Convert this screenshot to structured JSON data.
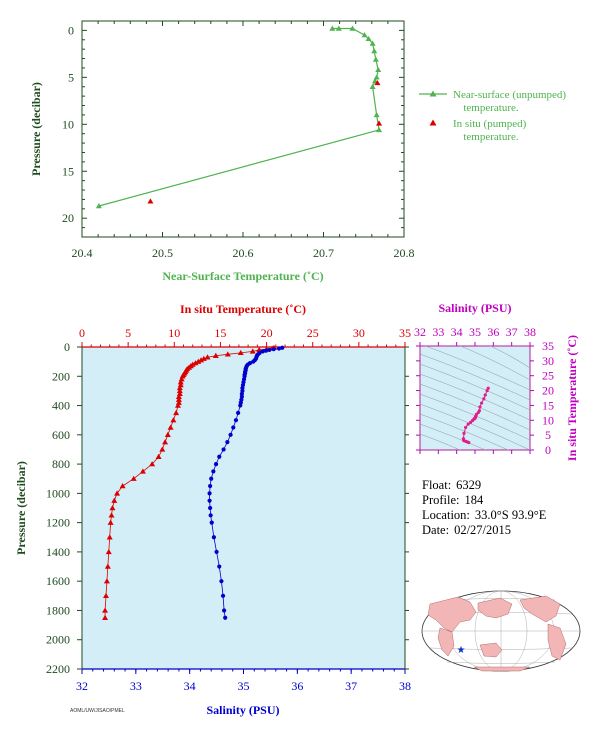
{
  "colors": {
    "near_surface": "#4fb34f",
    "in_situ_temp": "#dd0000",
    "salinity": "#0000cc",
    "ts_plot": "#e0208a",
    "axis_dark": "#1f4a1f",
    "plot_bg": "#d4eef8",
    "land": "#f2b6b6",
    "ocean": "#ffffff"
  },
  "float_info": {
    "float_label": "Float:",
    "float_value": "6329",
    "profile_label": "Profile:",
    "profile_value": "184",
    "location_label": "Location:",
    "location_value": "33.0°S  93.9°E",
    "date_label": "Date:",
    "date_value": "02/27/2015"
  },
  "footer_tag": "AOML/UW/JISAO/PMEL",
  "chart_data": [
    {
      "id": "near_surface",
      "type": "line",
      "xlabel": "Near-Surface Temperature (˚C)",
      "ylabel": "Pressure (decibar)",
      "xlim": [
        20.4,
        20.8
      ],
      "ylim": [
        22,
        -1
      ],
      "x_ticks": [
        "20.4",
        "20.5",
        "20.6",
        "20.7",
        "20.8"
      ],
      "y_ticks": [
        "0",
        "5",
        "10",
        "15",
        "20"
      ],
      "legend": [
        "Near-surface (unpumped) temperature.",
        "In situ (pumped) temperature."
      ],
      "series": [
        {
          "name": "Near-surface (unpumped) temperature.",
          "x": [
            20.711,
            20.719,
            20.736,
            20.751,
            20.756,
            20.761,
            20.763,
            20.765,
            20.768,
            20.766,
            20.764,
            20.761,
            20.766,
            20.769,
            20.421
          ],
          "y": [
            -0.2,
            -0.2,
            -0.2,
            0.5,
            0.9,
            1.4,
            2.2,
            3.1,
            4.2,
            5.0,
            5.4,
            6.0,
            9.0,
            10.6,
            18.7
          ]
        },
        {
          "name": "In situ (pumped) temperature.",
          "x": [
            20.767,
            20.769,
            20.485
          ],
          "y": [
            5.6,
            9.9,
            18.2
          ]
        }
      ]
    },
    {
      "id": "profile",
      "type": "scatter",
      "xlabel_top": "In situ Temperature (˚C)",
      "xlabel_bottom": "Salinity (PSU)",
      "ylabel": "Pressure (decibar)",
      "temp_lim": [
        0,
        35
      ],
      "sal_lim": [
        32,
        38
      ],
      "ylim": [
        2200,
        0
      ],
      "temp_ticks": [
        "0",
        "5",
        "10",
        "15",
        "20",
        "25",
        "30",
        "35"
      ],
      "sal_ticks": [
        "32",
        "33",
        "34",
        "35",
        "36",
        "37",
        "38"
      ],
      "y_ticks": [
        "0",
        "200",
        "400",
        "600",
        "800",
        "1000",
        "1200",
        "1400",
        "1600",
        "1800",
        "2000",
        "2200"
      ],
      "temperature": {
        "p": [
          5,
          10,
          15,
          20,
          30,
          40,
          50,
          60,
          70,
          80,
          90,
          100,
          110,
          120,
          130,
          140,
          150,
          160,
          170,
          180,
          190,
          200,
          220,
          240,
          260,
          280,
          300,
          320,
          340,
          360,
          380,
          400,
          450,
          500,
          550,
          600,
          650,
          700,
          750,
          800,
          850,
          900,
          950,
          1000,
          1050,
          1100,
          1150,
          1200,
          1300,
          1400,
          1500,
          1600,
          1700,
          1800,
          1850
        ],
        "t": [
          20.8,
          20.6,
          20.0,
          19.2,
          18.5,
          17.2,
          15.8,
          14.5,
          13.6,
          13.2,
          12.9,
          12.6,
          12.3,
          12.0,
          11.8,
          11.6,
          11.4,
          11.3,
          11.2,
          11.1,
          11.0,
          10.9,
          10.8,
          10.7,
          10.7,
          10.6,
          10.6,
          10.6,
          10.5,
          10.5,
          10.5,
          10.4,
          10.2,
          9.9,
          9.6,
          9.3,
          9.0,
          8.7,
          8.3,
          7.6,
          6.6,
          5.6,
          4.4,
          3.8,
          3.5,
          3.3,
          3.2,
          3.1,
          3.0,
          2.9,
          2.8,
          2.7,
          2.6,
          2.5,
          2.5
        ]
      },
      "salinity": {
        "p": [
          5,
          10,
          15,
          20,
          25,
          30,
          40,
          50,
          60,
          70,
          80,
          90,
          100,
          110,
          120,
          130,
          140,
          150,
          160,
          170,
          180,
          190,
          200,
          220,
          240,
          260,
          280,
          300,
          320,
          340,
          360,
          380,
          400,
          450,
          500,
          550,
          600,
          650,
          700,
          750,
          800,
          850,
          900,
          950,
          1000,
          1050,
          1100,
          1150,
          1200,
          1300,
          1400,
          1500,
          1600,
          1700,
          1800,
          1850
        ],
        "s": [
          35.72,
          35.66,
          35.56,
          35.48,
          35.42,
          35.36,
          35.3,
          35.27,
          35.25,
          35.24,
          35.23,
          35.21,
          35.18,
          35.12,
          35.08,
          35.06,
          35.05,
          35.04,
          35.04,
          35.03,
          35.03,
          35.02,
          35.02,
          35.01,
          35.0,
          34.99,
          34.98,
          34.98,
          34.97,
          34.97,
          34.96,
          34.95,
          34.94,
          34.9,
          34.86,
          34.81,
          34.76,
          34.7,
          34.63,
          34.55,
          34.49,
          34.44,
          34.4,
          34.38,
          34.37,
          34.37,
          34.38,
          34.39,
          34.41,
          34.45,
          34.5,
          34.55,
          34.59,
          34.62,
          34.64,
          34.66
        ]
      }
    },
    {
      "id": "ts_diagram",
      "type": "scatter",
      "xlabel": "Salinity (PSU)",
      "ylabel": "In situ Temperature (˚C)",
      "xlim": [
        32,
        38
      ],
      "ylim": [
        0,
        35
      ],
      "x_ticks": [
        "32",
        "33",
        "34",
        "35",
        "36",
        "37",
        "38"
      ],
      "y_ticks": [
        "0",
        "5",
        "10",
        "15",
        "20",
        "25",
        "30",
        "35"
      ],
      "points": {
        "s": [
          35.72,
          35.66,
          35.56,
          35.48,
          35.36,
          35.27,
          35.24,
          35.18,
          35.08,
          35.05,
          35.03,
          35.02,
          35.0,
          34.98,
          34.96,
          34.94,
          34.86,
          34.76,
          34.63,
          34.49,
          34.4,
          34.37,
          34.38,
          34.41,
          34.5,
          34.59,
          34.66
        ],
        "t": [
          20.8,
          20.0,
          18.5,
          17.2,
          15.8,
          14.5,
          13.2,
          12.6,
          12.0,
          11.4,
          11.1,
          10.9,
          10.7,
          10.6,
          10.5,
          10.4,
          9.9,
          9.3,
          8.7,
          7.6,
          5.6,
          3.8,
          3.3,
          3.1,
          2.9,
          2.7,
          2.5
        ]
      }
    }
  ]
}
